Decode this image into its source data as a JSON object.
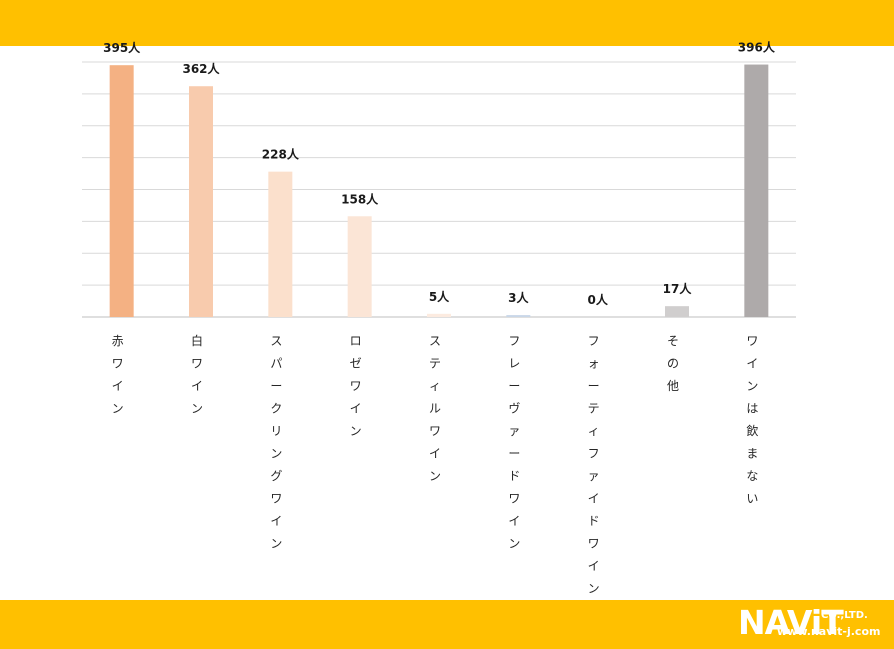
{
  "brand": {
    "name": "NAViT",
    "company": "CO.,LTD.",
    "url": "www.navit-j.com"
  },
  "colors": {
    "band": "#FFC000",
    "grid": "#D9D9D9",
    "axis": "#BFBFBF"
  },
  "chart_data": {
    "type": "bar",
    "categories": [
      "赤ワイン",
      "白ワイン",
      "スパークリングワイン",
      "ロゼワイン",
      "スティルワイン",
      "フレーヴァードワイン",
      "フォーティファイドワイン",
      "その他",
      "ワインは飲まない"
    ],
    "values": [
      395,
      362,
      228,
      158,
      5,
      3,
      0,
      17,
      396
    ],
    "value_labels": [
      "395人",
      "362人",
      "228人",
      "158人",
      "5人",
      "3人",
      "0人",
      "17人",
      "396人"
    ],
    "unit": "人",
    "bar_colors": [
      "#F4B183",
      "#F8CBAD",
      "#FBE0CC",
      "#FBE5D6",
      "#FCEBE0",
      "#C9D7E8",
      "#E0E0E0",
      "#D0CECE",
      "#AEAAAA"
    ],
    "ylim": [
      0,
      400
    ],
    "grid": true,
    "legend": "none"
  }
}
